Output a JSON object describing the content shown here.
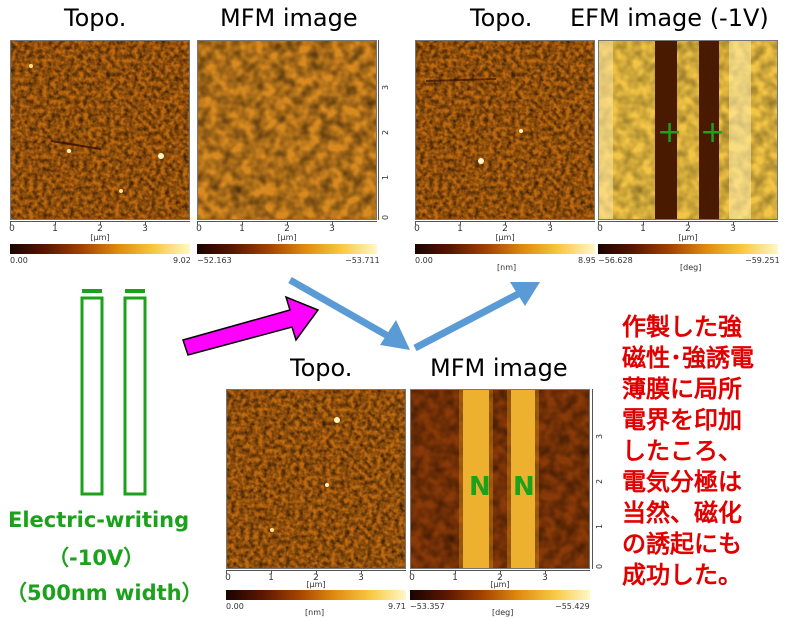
{
  "panels": {
    "top_left": {
      "topo_title": "Topo.",
      "mfm_title": "MFM image",
      "topo_unit": "[μm]",
      "mfm_unit": "[μm]",
      "topo_cbar_min": "0.00",
      "topo_cbar_max": "9.02",
      "mfm_cbar_min": "−52.163",
      "mfm_cbar_max": "−53.711"
    },
    "top_right": {
      "topo_title": "Topo.",
      "efm_title": "EFM image (-1V)",
      "topo_unit": "[μm]",
      "efm_unit": "[μm]",
      "topo_cbar_min": "0.00",
      "topo_cbar_max": "8.95",
      "topo_cbar_unit": "[nm]",
      "efm_cbar_min": "−56.628",
      "efm_cbar_max": "−59.251",
      "efm_cbar_unit": "[deg]",
      "markers": [
        "+",
        "+"
      ]
    },
    "bottom": {
      "topo_title": "Topo.",
      "mfm_title": "MFM image",
      "topo_unit": "[μm]",
      "mfm_unit": "[μm]",
      "topo_cbar_min": "0.00",
      "topo_cbar_max": "9.71",
      "topo_cbar_unit": "[nm]",
      "mfm_cbar_min": "−53.357",
      "mfm_cbar_max": "−55.429",
      "mfm_cbar_unit": "[deg]",
      "markers": [
        "N",
        "N"
      ]
    }
  },
  "axis_ticks": [
    "0",
    "1",
    "2",
    "3"
  ],
  "writing": {
    "line1": "Electric-writing",
    "line2": "（-10V）",
    "line3": "（500nm width）"
  },
  "note_lines": [
    "作製した強",
    "磁性･強誘電",
    "薄膜に局所",
    "電界を印加",
    "したころ、",
    "電気分極は",
    "当然、磁化",
    "の誘起にも",
    "成功した。"
  ],
  "colors": {
    "note": "#e00000",
    "writing": "#1ba11b",
    "arrow_blue": "#5b9bd5",
    "arrow_magenta": "#ff00ff"
  }
}
